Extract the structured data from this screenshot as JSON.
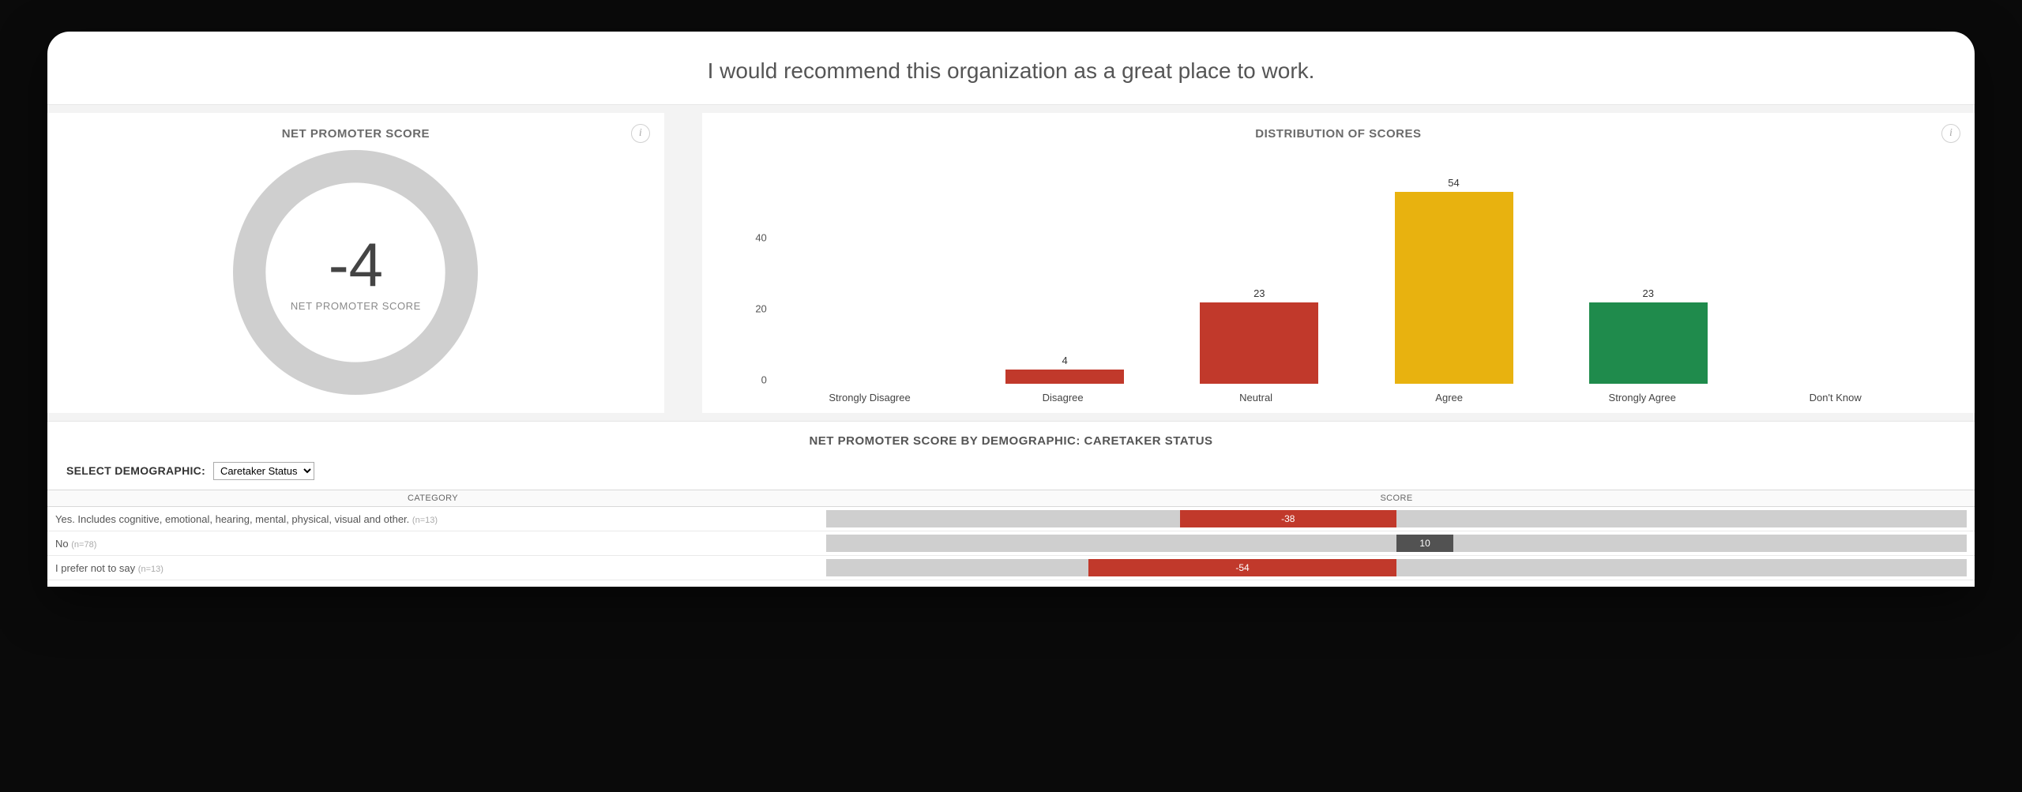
{
  "colors": {
    "page_bg": "#0a0a0a",
    "card_bg": "#ffffff",
    "strip_bg": "#f3f3f3",
    "text_muted": "#6a6a6a",
    "gauge_track": "#cfcfcf",
    "red": "#c1392b",
    "yellow": "#e8b20f",
    "green": "#1f8b4c",
    "row_track": "#cfcfcf",
    "row_pos": "#525252"
  },
  "header": {
    "title": "I would recommend this organization as a great place to work."
  },
  "nps_card": {
    "title": "NET PROMOTER SCORE",
    "score_display": "-4",
    "score_percent_of_full": 0.04,
    "sub_label": "NET PROMOTER SCORE",
    "info_tooltip": "i"
  },
  "dist_card": {
    "title": "DISTRIBUTION OF SCORES",
    "info_tooltip": "i",
    "y_ticks": [
      0,
      20,
      40
    ],
    "y_max": 60,
    "chart_type": "bar",
    "bars": [
      {
        "label": "Strongly Disagree",
        "value": null,
        "color": "#c1392b"
      },
      {
        "label": "Disagree",
        "value": 4,
        "color": "#c1392b"
      },
      {
        "label": "Neutral",
        "value": 23,
        "color": "#c1392b"
      },
      {
        "label": "Agree",
        "value": 54,
        "color": "#e8b20f"
      },
      {
        "label": "Strongly Agree",
        "value": 23,
        "color": "#1f8b4c"
      },
      {
        "label": "Don't Know",
        "value": null,
        "color": "#cfcfcf"
      }
    ]
  },
  "demo": {
    "title": "NET PROMOTER SCORE BY DEMOGRAPHIC: CARETAKER STATUS",
    "select_label": "SELECT DEMOGRAPHIC:",
    "select_value": "Caretaker Status",
    "columns": {
      "category": "CATEGORY",
      "score": "SCORE"
    },
    "range": {
      "min": -100,
      "max": 100
    },
    "rows": [
      {
        "category": "Yes. Includes cognitive, emotional, hearing, mental, physical, visual and other.",
        "n": "(n=13)",
        "score": -38,
        "color": "#c1392b"
      },
      {
        "category": "No",
        "n": "(n=78)",
        "score": 10,
        "color": "#525252"
      },
      {
        "category": "I prefer not to say",
        "n": "(n=13)",
        "score": -54,
        "color": "#c1392b"
      }
    ]
  }
}
